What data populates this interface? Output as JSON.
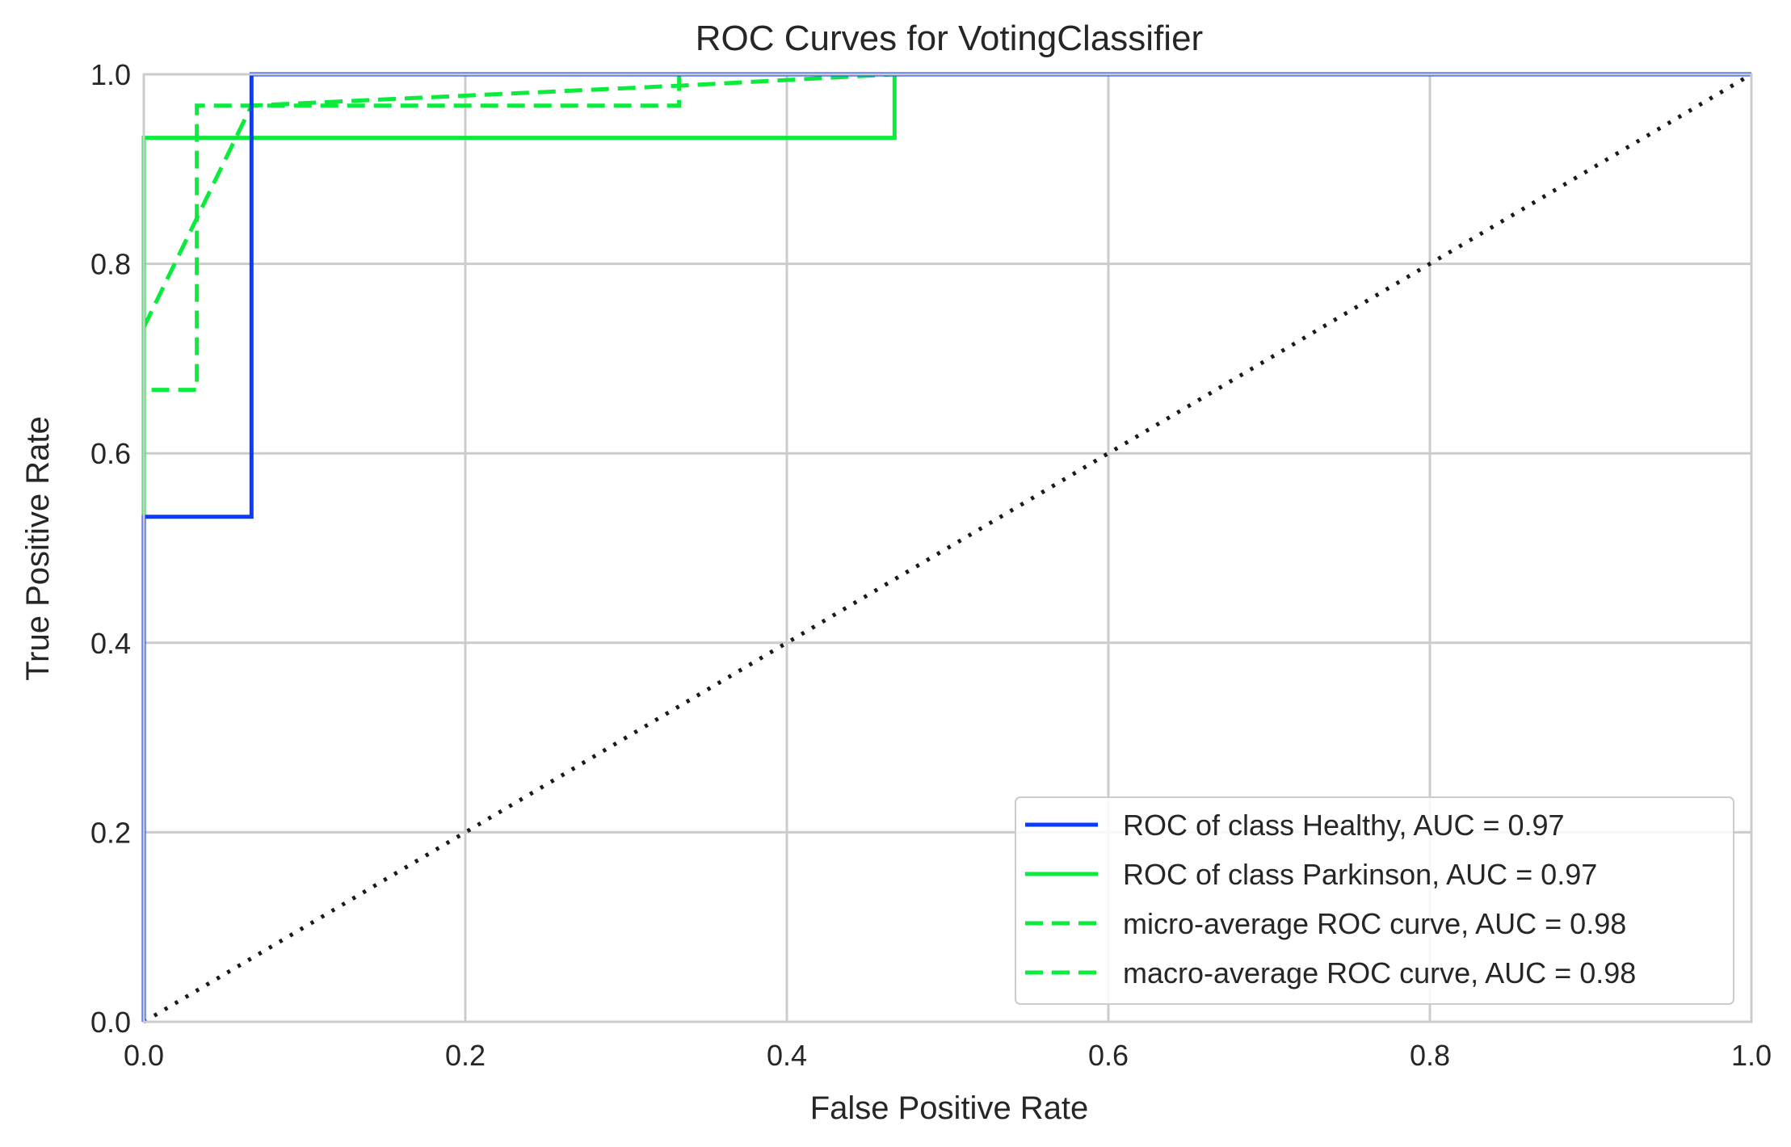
{
  "chart_data": {
    "type": "line",
    "title": "ROC Curves for VotingClassifier",
    "xlabel": "False Positive Rate",
    "ylabel": "True Positive Rate",
    "xlim": [
      0.0,
      1.0
    ],
    "ylim": [
      0.0,
      1.0
    ],
    "x_ticks": [
      "0.0",
      "0.2",
      "0.4",
      "0.6",
      "0.8",
      "1.0"
    ],
    "y_ticks": [
      "0.0",
      "0.2",
      "0.4",
      "0.6",
      "0.8",
      "1.0"
    ],
    "grid": true,
    "legend_position": "lower-right",
    "series": [
      {
        "name": "ROC of class Healthy, AUC = 0.97",
        "color": "#0a3cff",
        "dash": "solid",
        "x": [
          0.0,
          0.0,
          0.0,
          0.067,
          0.067,
          1.0
        ],
        "y": [
          0.0,
          0.033,
          0.533,
          0.533,
          1.0,
          1.0
        ]
      },
      {
        "name": "ROC of class Parkinson, AUC = 0.97",
        "color": "#0aeb3c",
        "dash": "solid",
        "x": [
          0.0,
          0.0,
          0.0,
          0.467,
          0.467,
          1.0
        ],
        "y": [
          0.0,
          0.067,
          0.933,
          0.933,
          1.0,
          1.0
        ]
      },
      {
        "name": "micro-average ROC curve, AUC = 0.98",
        "color": "#0aeb3c",
        "dash": "dashed",
        "x": [
          0.0,
          0.0,
          0.033,
          0.033,
          0.333,
          0.333,
          1.0
        ],
        "y": [
          0.0,
          0.667,
          0.667,
          0.967,
          0.967,
          1.0,
          1.0
        ]
      },
      {
        "name": "macro-average ROC curve, AUC = 0.98",
        "color": "#0aeb3c",
        "dash": "dashed",
        "x": [
          0.0,
          0.067,
          0.333,
          0.467,
          1.0
        ],
        "y": [
          0.733,
          0.967,
          0.988,
          1.0,
          1.0
        ]
      }
    ],
    "reference_line": {
      "x": [
        0.0,
        1.0
      ],
      "y": [
        0.0,
        1.0
      ],
      "color": "#1a1a1a",
      "dash": "dotted"
    }
  }
}
